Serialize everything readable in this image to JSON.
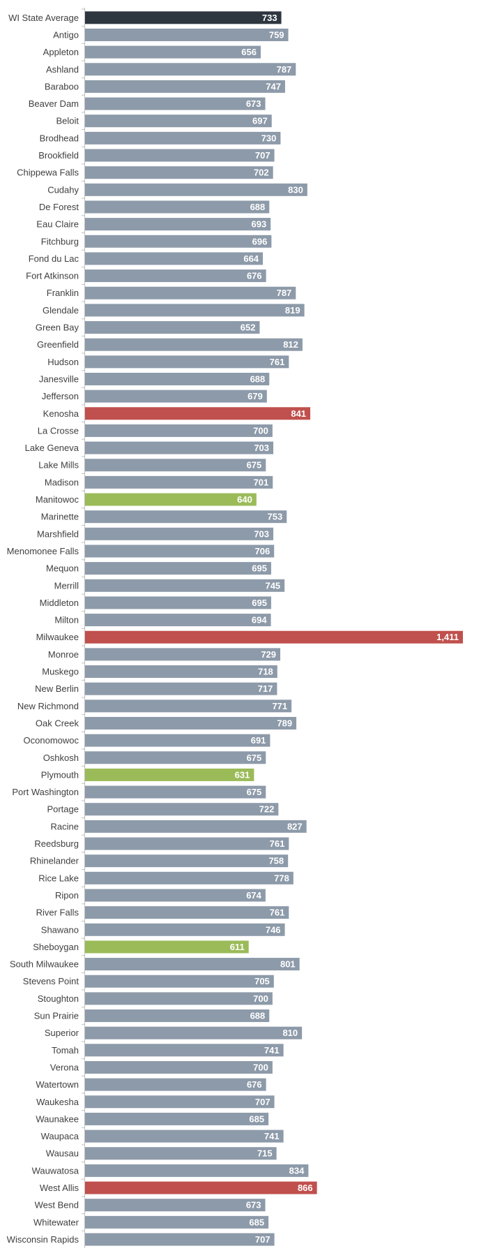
{
  "chart_data": {
    "type": "bar",
    "orientation": "horizontal",
    "title": "",
    "xlabel": "",
    "ylabel": "",
    "xlim": [
      0,
      1411
    ],
    "grid": false,
    "legend": "none",
    "colors": {
      "default": "#8d9aa9",
      "state_average": "#2e3640",
      "high": "#c0504d",
      "low": "#9bbb59"
    },
    "categories": [
      "WI State Average",
      "Antigo",
      "Appleton",
      "Ashland",
      "Baraboo",
      "Beaver Dam",
      "Beloit",
      "Brodhead",
      "Brookfield",
      "Chippewa Falls",
      "Cudahy",
      "De Forest",
      "Eau Claire",
      "Fitchburg",
      "Fond du Lac",
      "Fort Atkinson",
      "Franklin",
      "Glendale",
      "Green Bay",
      "Greenfield",
      "Hudson",
      "Janesville",
      "Jefferson",
      "Kenosha",
      "La Crosse",
      "Lake Geneva",
      "Lake Mills",
      "Madison",
      "Manitowoc",
      "Marinette",
      "Marshfield",
      "Menomonee Falls",
      "Mequon",
      "Merrill",
      "Middleton",
      "Milton",
      "Milwaukee",
      "Monroe",
      "Muskego",
      "New Berlin",
      "New Richmond",
      "Oak Creek",
      "Oconomowoc",
      "Oshkosh",
      "Plymouth",
      "Port Washington",
      "Portage",
      "Racine",
      "Reedsburg",
      "Rhinelander",
      "Rice Lake",
      "Ripon",
      "River Falls",
      "Shawano",
      "Sheboygan",
      "South Milwaukee",
      "Stevens Point",
      "Stoughton",
      "Sun Prairie",
      "Superior",
      "Tomah",
      "Verona",
      "Watertown",
      "Waukesha",
      "Waunakee",
      "Waupaca",
      "Wausau",
      "Wauwatosa",
      "West Allis",
      "West Bend",
      "Whitewater",
      "Wisconsin Rapids"
    ],
    "values": [
      733,
      759,
      656,
      787,
      747,
      673,
      697,
      730,
      707,
      702,
      830,
      688,
      693,
      696,
      664,
      676,
      787,
      819,
      652,
      812,
      761,
      688,
      679,
      841,
      700,
      703,
      675,
      701,
      640,
      753,
      703,
      706,
      695,
      745,
      695,
      694,
      1411,
      729,
      718,
      717,
      771,
      789,
      691,
      675,
      631,
      675,
      722,
      827,
      761,
      758,
      778,
      674,
      761,
      746,
      611,
      801,
      705,
      700,
      688,
      810,
      741,
      700,
      676,
      707,
      685,
      741,
      715,
      834,
      866,
      673,
      685,
      707
    ],
    "value_labels": [
      "733",
      "759",
      "656",
      "787",
      "747",
      "673",
      "697",
      "730",
      "707",
      "702",
      "830",
      "688",
      "693",
      "696",
      "664",
      "676",
      "787",
      "819",
      "652",
      "812",
      "761",
      "688",
      "679",
      "841",
      "700",
      "703",
      "675",
      "701",
      "640",
      "753",
      "703",
      "706",
      "695",
      "745",
      "695",
      "694",
      "1,411",
      "729",
      "718",
      "717",
      "771",
      "789",
      "691",
      "675",
      "631",
      "675",
      "722",
      "827",
      "761",
      "758",
      "778",
      "674",
      "761",
      "746",
      "611",
      "801",
      "705",
      "700",
      "688",
      "810",
      "741",
      "700",
      "676",
      "707",
      "685",
      "741",
      "715",
      "834",
      "866",
      "673",
      "685",
      "707"
    ],
    "highlight": {
      "WI State Average": "state_average",
      "Kenosha": "high",
      "Milwaukee": "high",
      "West Allis": "high",
      "Manitowoc": "low",
      "Plymouth": "low",
      "Sheboygan": "low"
    }
  }
}
